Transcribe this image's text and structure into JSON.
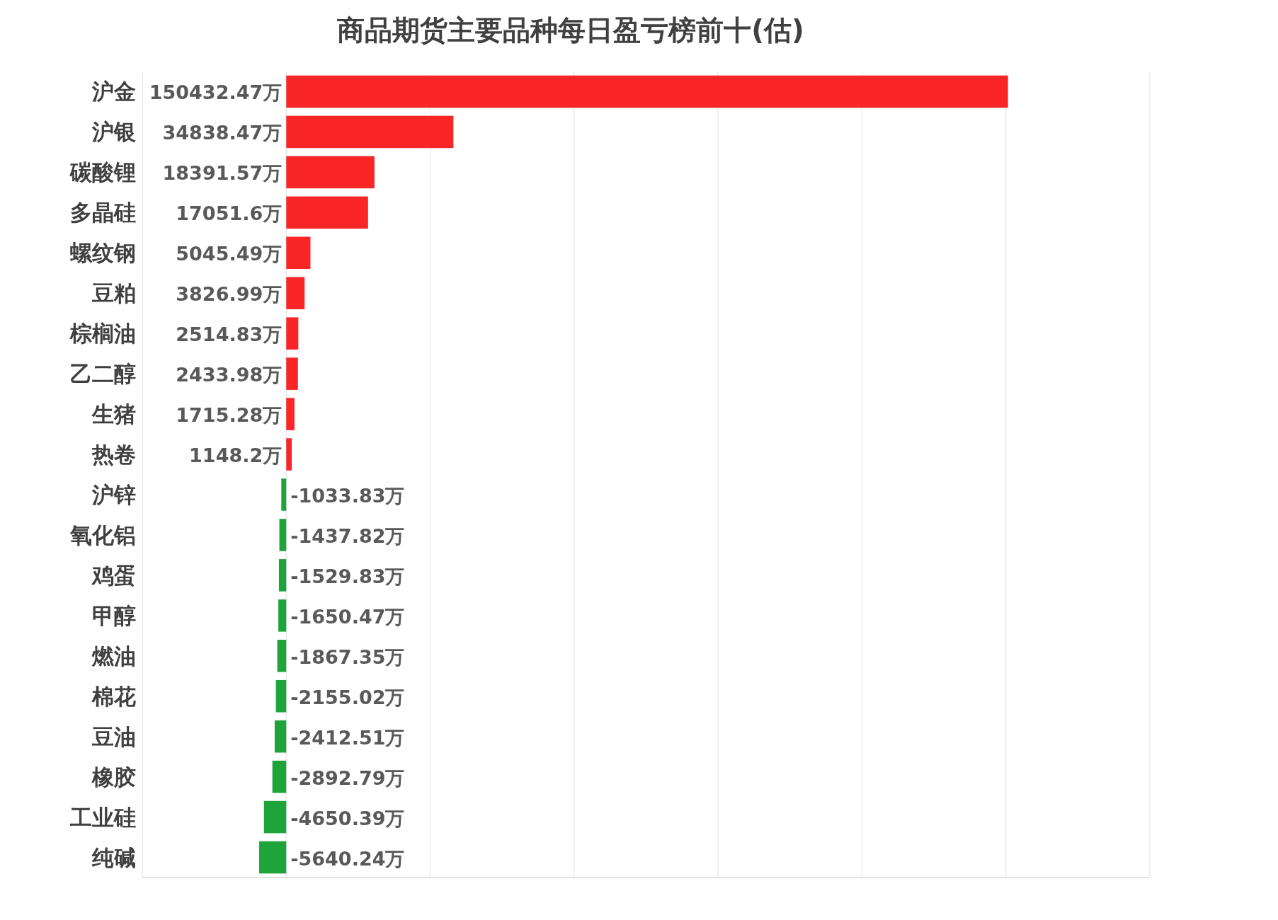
{
  "chart_data": {
    "type": "bar",
    "orientation": "horizontal",
    "title": "商品期货主要品种每日盈亏榜前十(估)",
    "categories": [
      "沪金",
      "沪银",
      "碳酸锂",
      "多晶硅",
      "螺纹钢",
      "豆粕",
      "棕榈油",
      "乙二醇",
      "生猪",
      "热卷",
      "沪锌",
      "氧化铝",
      "鸡蛋",
      "甲醇",
      "燃油",
      "棉花",
      "豆油",
      "橡胶",
      "工业硅",
      "纯碱"
    ],
    "values": [
      150432.47,
      34838.47,
      18391.57,
      17051.6,
      5045.49,
      3826.99,
      2514.83,
      2433.98,
      1715.28,
      1148.2,
      -1033.83,
      -1437.82,
      -1529.83,
      -1650.47,
      -1867.35,
      -2155.02,
      -2412.51,
      -2892.79,
      -4650.39,
      -5640.24
    ],
    "value_labels": [
      "150432.47万",
      "34838.47万",
      "18391.57万",
      "17051.6万",
      "5045.49万",
      "3826.99万",
      "2514.83万",
      "2433.98万",
      "1715.28万",
      "1148.2万",
      "-1033.83万",
      "-1437.82万",
      "-1529.83万",
      "-1650.47万",
      "-1867.35万",
      "-2155.02万",
      "-2412.51万",
      "-2892.79万",
      "-4650.39万",
      "-5640.24万"
    ],
    "colors": [
      "#f92527",
      "#f92527",
      "#f92527",
      "#f92527",
      "#f92527",
      "#f92527",
      "#f92527",
      "#f92527",
      "#f92527",
      "#f92527",
      "#1fa33b",
      "#1fa33b",
      "#1fa33b",
      "#1fa33b",
      "#1fa33b",
      "#1fa33b",
      "#1fa33b",
      "#1fa33b",
      "#1fa33b",
      "#1fa33b"
    ],
    "xlim": [
      -30000,
      180000
    ],
    "xticks": [
      {
        "value": -30000,
        "label": null
      },
      {
        "value": 0,
        "label": null
      },
      {
        "value": 30000,
        "label": null
      },
      {
        "value": 60000,
        "label": null
      },
      {
        "value": 90000,
        "label": null
      },
      {
        "value": 120000,
        "label": null
      },
      {
        "value": 150000,
        "label": null
      },
      {
        "value": 180000,
        "label": null
      }
    ],
    "grid": "x",
    "tick_labels": false
  }
}
